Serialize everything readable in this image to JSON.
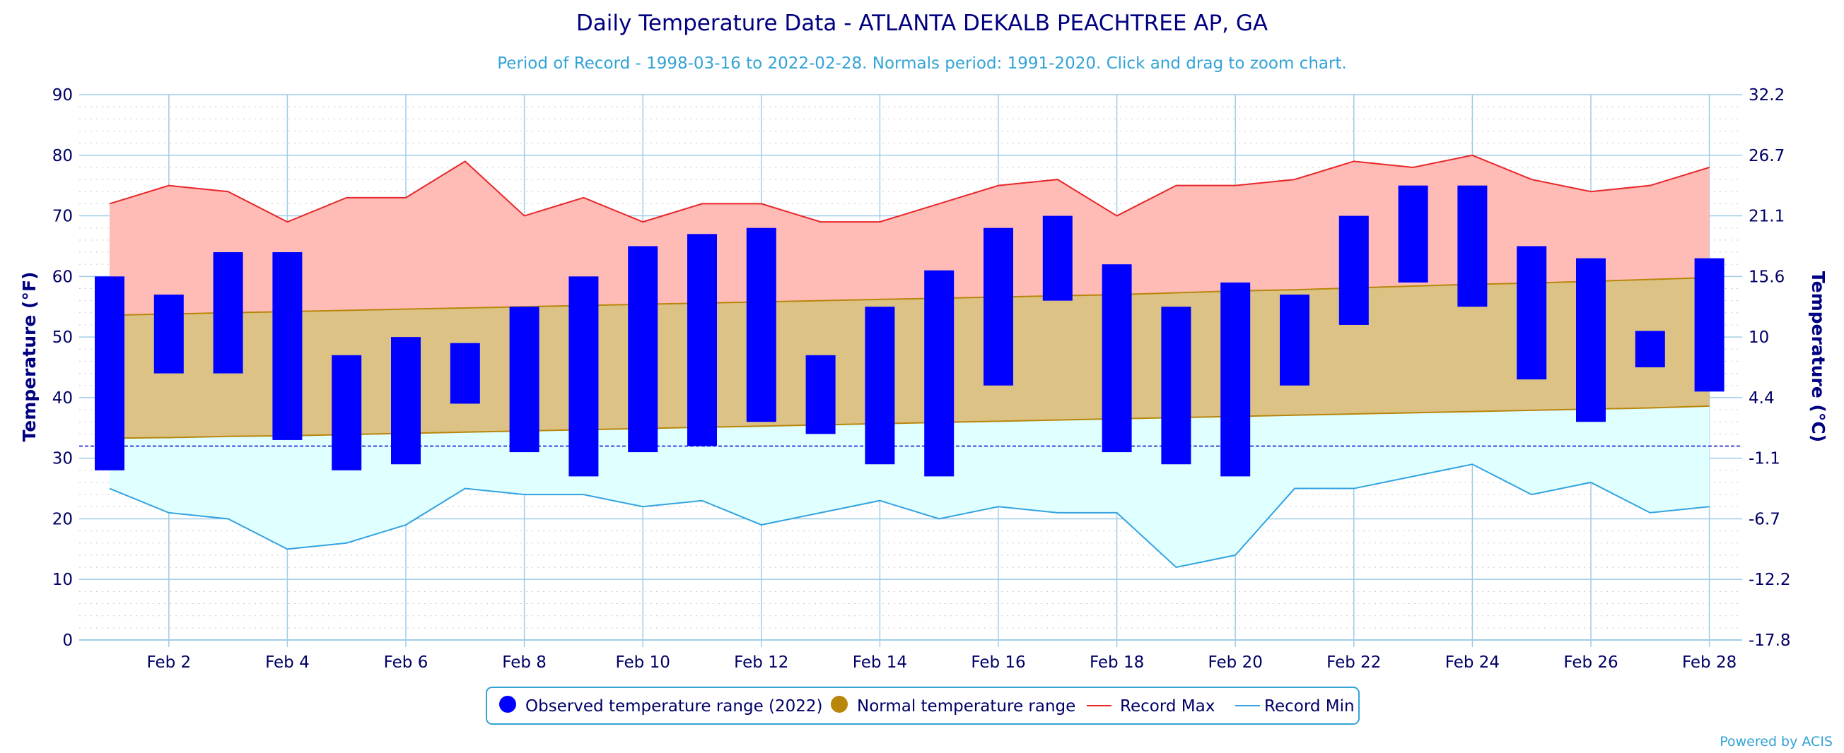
{
  "chart_data": {
    "type": "bar",
    "title": "Daily Temperature Data - ATLANTA DEKALB PEACHTREE AP, GA",
    "subtitle": "Period of Record - 1998-03-16 to 2022-02-28. Normals period: 1991-2020. Click and drag to zoom chart.",
    "ylabel": "Temperature (°F)",
    "ylabel_right": "Temperature (°C)",
    "ylim": [
      0,
      90
    ],
    "y_ticks": [
      0,
      10,
      20,
      30,
      40,
      50,
      60,
      70,
      80,
      90
    ],
    "y_ticks_right": [
      "-17.8",
      "-12.2",
      "-6.7",
      "-1.1",
      "4.4",
      "10",
      "15.6",
      "21.1",
      "26.7",
      "32.2"
    ],
    "x_tick_labels": [
      "Feb 2",
      "Feb 4",
      "Feb 6",
      "Feb 8",
      "Feb 10",
      "Feb 12",
      "Feb 14",
      "Feb 16",
      "Feb 18",
      "Feb 20",
      "Feb 22",
      "Feb 24",
      "Feb 26",
      "Feb 28"
    ],
    "x_tick_days": [
      2,
      4,
      6,
      8,
      10,
      12,
      14,
      16,
      18,
      20,
      22,
      24,
      26,
      28
    ],
    "days": [
      1,
      2,
      3,
      4,
      5,
      6,
      7,
      8,
      9,
      10,
      11,
      12,
      13,
      14,
      15,
      16,
      17,
      18,
      19,
      20,
      21,
      22,
      23,
      24,
      25,
      26,
      27,
      28
    ],
    "freezing_line": 32,
    "grid": true,
    "legend_position": "bottom",
    "series": [
      {
        "name": "Observed temperature range (2022)",
        "color": "#0000ff",
        "low": [
          28,
          44,
          44,
          33,
          28,
          29,
          39,
          31,
          27,
          31,
          32,
          36,
          34,
          29,
          27,
          42,
          56,
          31,
          29,
          27,
          42,
          52,
          59,
          55,
          43,
          36,
          45,
          41
        ],
        "high": [
          60,
          57,
          64,
          64,
          47,
          50,
          49,
          55,
          60,
          65,
          67,
          68,
          47,
          55,
          61,
          68,
          70,
          62,
          55,
          59,
          57,
          70,
          75,
          75,
          65,
          63,
          51,
          63
        ]
      },
      {
        "name": "Normal temperature range",
        "color": "#b8860b",
        "low": [
          33.3,
          33.4,
          33.6,
          33.7,
          33.9,
          34.1,
          34.3,
          34.5,
          34.7,
          34.9,
          35.1,
          35.3,
          35.5,
          35.7,
          35.9,
          36.1,
          36.3,
          36.5,
          36.7,
          36.9,
          37.1,
          37.3,
          37.5,
          37.7,
          37.9,
          38.1,
          38.3,
          38.6
        ],
        "high": [
          53.6,
          53.8,
          54.0,
          54.2,
          54.4,
          54.6,
          54.8,
          55.0,
          55.2,
          55.4,
          55.6,
          55.8,
          56.0,
          56.2,
          56.4,
          56.6,
          56.8,
          57.0,
          57.3,
          57.6,
          57.8,
          58.1,
          58.4,
          58.7,
          58.9,
          59.2,
          59.5,
          59.8
        ]
      },
      {
        "name": "Record Max",
        "color": "#e8262a",
        "values": [
          72,
          75,
          74,
          69,
          73,
          73,
          79,
          70,
          73,
          69,
          72,
          72,
          69,
          69,
          72,
          75,
          76,
          70,
          75,
          75,
          76,
          79,
          78,
          80,
          76,
          74,
          75,
          78
        ]
      },
      {
        "name": "Record Min",
        "color": "#33a3e0",
        "values": [
          25,
          21,
          20,
          15,
          16,
          19,
          25,
          24,
          24,
          22,
          23,
          19,
          21,
          23,
          20,
          22,
          21,
          21,
          12,
          14,
          25,
          25,
          27,
          29,
          24,
          26,
          21,
          22
        ]
      }
    ]
  },
  "footer": {
    "credit": "Powered by ACIS"
  }
}
